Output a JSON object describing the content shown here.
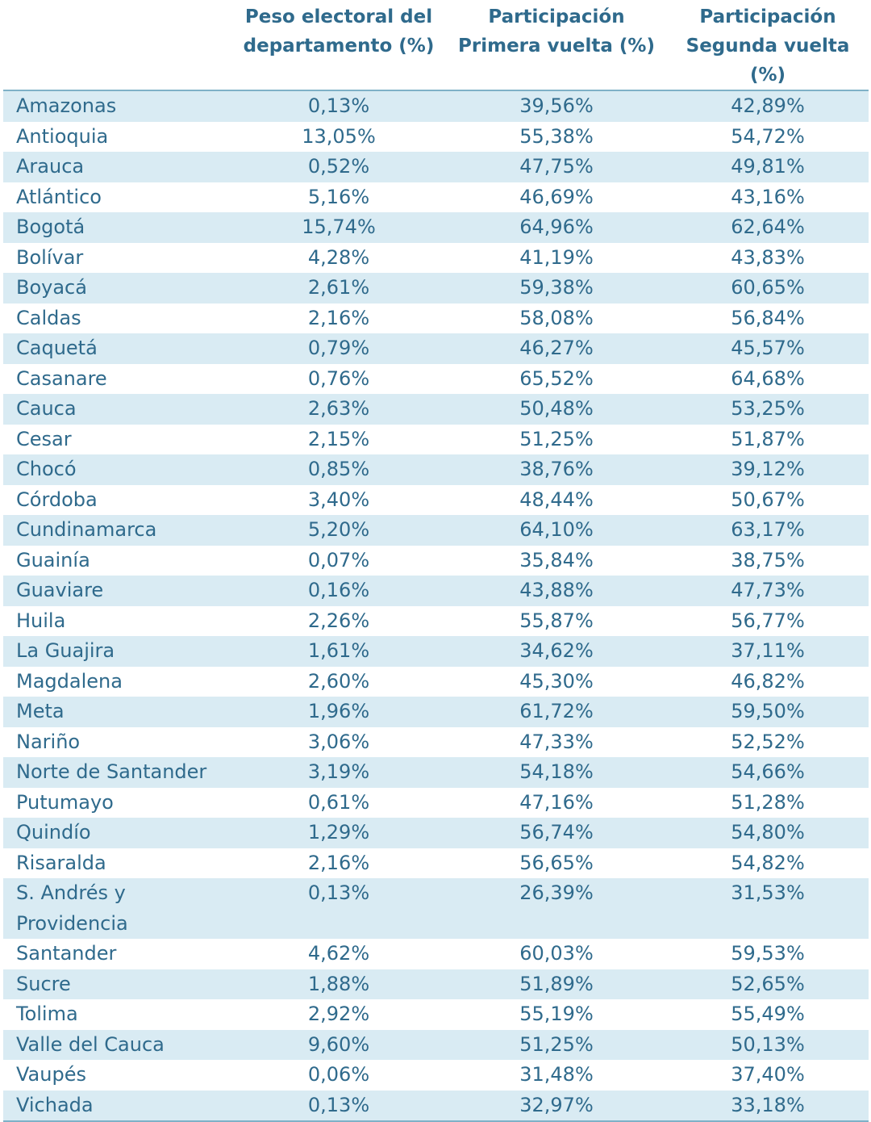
{
  "table": {
    "headers": [
      "",
      "Peso electoral del departamento (%)",
      "Participación Primera vuelta (%)",
      "Participación Segunda vuelta (%)"
    ],
    "rows": [
      [
        "Amazonas",
        "0,13%",
        "39,56%",
        "42,89%"
      ],
      [
        "Antioquia",
        "13,05%",
        "55,38%",
        "54,72%"
      ],
      [
        "Arauca",
        "0,52%",
        "47,75%",
        "49,81%"
      ],
      [
        "Atlántico",
        "5,16%",
        "46,69%",
        "43,16%"
      ],
      [
        "Bogotá",
        "15,74%",
        "64,96%",
        "62,64%"
      ],
      [
        "Bolívar",
        "4,28%",
        "41,19%",
        "43,83%"
      ],
      [
        "Boyacá",
        "2,61%",
        "59,38%",
        "60,65%"
      ],
      [
        "Caldas",
        "2,16%",
        "58,08%",
        "56,84%"
      ],
      [
        "Caquetá",
        "0,79%",
        "46,27%",
        "45,57%"
      ],
      [
        "Casanare",
        "0,76%",
        "65,52%",
        "64,68%"
      ],
      [
        "Cauca",
        "2,63%",
        "50,48%",
        "53,25%"
      ],
      [
        "Cesar",
        "2,15%",
        "51,25%",
        "51,87%"
      ],
      [
        "Chocó",
        "0,85%",
        "38,76%",
        "39,12%"
      ],
      [
        "Córdoba",
        "3,40%",
        "48,44%",
        "50,67%"
      ],
      [
        "Cundinamarca",
        "5,20%",
        "64,10%",
        "63,17%"
      ],
      [
        "Guainía",
        "0,07%",
        "35,84%",
        "38,75%"
      ],
      [
        "Guaviare",
        "0,16%",
        "43,88%",
        "47,73%"
      ],
      [
        "Huila",
        "2,26%",
        "55,87%",
        "56,77%"
      ],
      [
        "La Guajira",
        "1,61%",
        "34,62%",
        "37,11%"
      ],
      [
        "Magdalena",
        "2,60%",
        "45,30%",
        "46,82%"
      ],
      [
        "Meta",
        "1,96%",
        "61,72%",
        "59,50%"
      ],
      [
        "Nariño",
        "3,06%",
        "47,33%",
        "52,52%"
      ],
      [
        "Norte de Santander",
        "3,19%",
        "54,18%",
        "54,66%"
      ],
      [
        "Putumayo",
        "0,61%",
        "47,16%",
        "51,28%"
      ],
      [
        "Quindío",
        "1,29%",
        "56,74%",
        "54,80%"
      ],
      [
        "Risaralda",
        "2,16%",
        "56,65%",
        "54,82%"
      ],
      [
        "S. Andrés y Providencia",
        "0,13%",
        "26,39%",
        "31,53%"
      ],
      [
        "Santander",
        "4,62%",
        "60,03%",
        "59,53%"
      ],
      [
        "Sucre",
        "1,88%",
        "51,89%",
        "52,65%"
      ],
      [
        "Tolima",
        "2,92%",
        "55,19%",
        "55,49%"
      ],
      [
        "Valle del Cauca",
        "9,60%",
        "51,25%",
        "50,13%"
      ],
      [
        "Vaupés",
        "0,06%",
        "31,48%",
        "37,40%"
      ],
      [
        "Vichada",
        "0,13%",
        "32,97%",
        "33,18%"
      ]
    ]
  }
}
